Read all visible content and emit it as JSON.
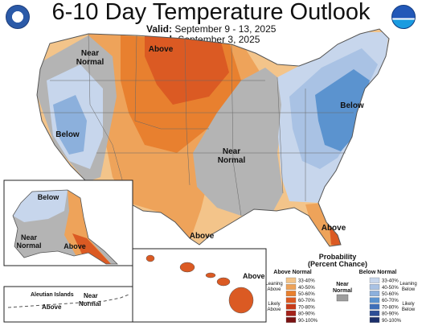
{
  "header": {
    "title": "6-10 Day Temperature Outlook",
    "valid_label": "Valid:",
    "valid_value": "September 9 - 13, 2025",
    "issued_label": "Issued:",
    "issued_value": "September 3, 2025"
  },
  "map_labels": {
    "near_normal_nw": [
      "Near",
      "Normal"
    ],
    "above_north": "Above",
    "below_west": "Below",
    "near_normal_central": [
      "Near",
      "Normal"
    ],
    "below_east": "Below",
    "above_texas": "Above",
    "above_florida": "Above"
  },
  "alaska": {
    "below": "Below",
    "near_normal": [
      "Near",
      "Normal"
    ],
    "above": "Above",
    "aleutian": "Aleutian Islands",
    "near_normal_aleutian": [
      "Near",
      "Normal"
    ],
    "above_aleutian": "Above"
  },
  "hawaii": {
    "above": "Above"
  },
  "legend": {
    "title": [
      "Probability",
      "(Percent Chance)"
    ],
    "above_header": "Above Normal",
    "below_header": "Below Normal",
    "near_header": [
      "Near",
      "Normal"
    ],
    "leaning_above": [
      "Leaning",
      "Above"
    ],
    "likely_above": [
      "Likely",
      "Above"
    ],
    "leaning_below": [
      "Leaning",
      "Below"
    ],
    "likely_below": [
      "Likely",
      "Below"
    ],
    "ranges": [
      "33-40%",
      "40-50%",
      "50-60%",
      "60-70%",
      "70-80%",
      "80-90%",
      "90-100%"
    ],
    "above_colors": [
      "#f3c48a",
      "#eea35a",
      "#e8802f",
      "#db5a23",
      "#c63b1a",
      "#a4221a",
      "#7a1212"
    ],
    "below_colors": [
      "#c7d6ec",
      "#a9c2e4",
      "#8cb0dc",
      "#5b93cf",
      "#3f6fb8",
      "#2c4d96",
      "#1b2f6b"
    ],
    "near_color": "#9e9e9e"
  },
  "colors": {
    "background": "#ffffff",
    "near_normal": "#b4b4b4"
  },
  "logos": {
    "left": "doc-seal-icon",
    "right": "noaa-logo-icon"
  }
}
